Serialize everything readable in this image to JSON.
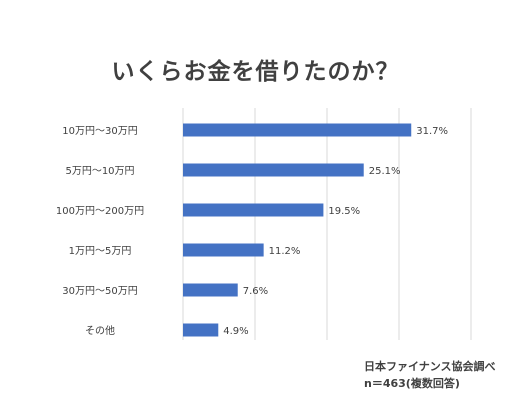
{
  "chart_data": {
    "type": "bar",
    "orientation": "horizontal",
    "title": "いくらお金を借りたのか？",
    "categories": [
      "10万円〜30万円",
      "5万円〜10万円",
      "100万円〜200万円",
      "1万円〜5万円",
      "30万円〜50万円",
      "その他"
    ],
    "values": [
      31.7,
      25.1,
      19.5,
      11.2,
      7.6,
      4.9
    ],
    "data_labels": [
      "31.7%",
      "25.1%",
      "19.5%",
      "11.2%",
      "7.6%",
      "4.9%"
    ],
    "xlim": [
      0,
      40
    ],
    "grid": true,
    "bar_color": "#4472c4"
  },
  "source": {
    "line1": "日本ファイナンス協会調べ",
    "line2": "n＝463(複数回答)"
  }
}
